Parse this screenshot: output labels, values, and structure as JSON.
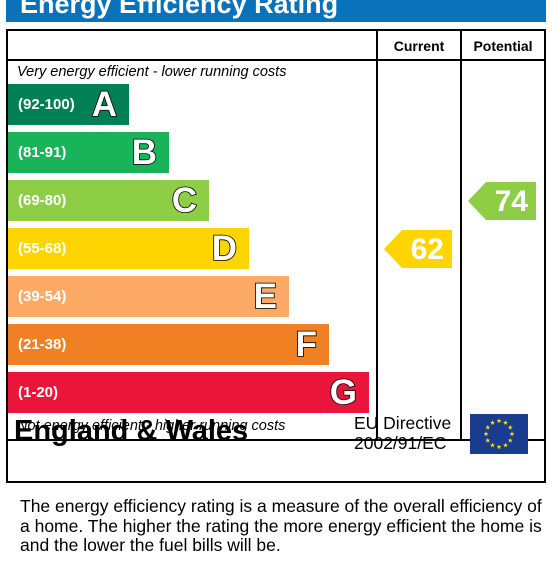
{
  "banner": {
    "title": "Energy Efficiency Rating"
  },
  "colors": {
    "banner": "#0a72bb",
    "band_a": "#008054",
    "band_b": "#19b459",
    "band_c": "#8dce46",
    "band_d": "#ffd500",
    "band_e": "#fcaa65",
    "band_f": "#ef8023",
    "band_g": "#e9153b",
    "eu_blue": "#1a3c8f",
    "eu_star": "#ffdd00"
  },
  "columns": {
    "current": "Current",
    "potential": "Potential"
  },
  "notes": {
    "top": "Very energy efficient - lower running costs",
    "bottom": "Not energy efficient - higher running costs"
  },
  "chart_data": {
    "type": "bar",
    "title": "Energy Efficiency Rating",
    "categories": [
      "A",
      "B",
      "C",
      "D",
      "E",
      "F",
      "G"
    ],
    "bands": [
      {
        "letter": "A",
        "range": "(92-100)",
        "color": "#008054"
      },
      {
        "letter": "B",
        "range": "(81-91)",
        "color": "#19b459"
      },
      {
        "letter": "C",
        "range": "(69-80)",
        "color": "#8dce46"
      },
      {
        "letter": "D",
        "range": "(55-68)",
        "color": "#ffd500"
      },
      {
        "letter": "E",
        "range": "(39-54)",
        "color": "#fcaa65"
      },
      {
        "letter": "F",
        "range": "(21-38)",
        "color": "#ef8023"
      },
      {
        "letter": "G",
        "range": "(1-20)",
        "color": "#e9153b"
      }
    ],
    "ratings": [
      {
        "column": "Current",
        "value": 62,
        "band": "D",
        "color": "#ffd500"
      },
      {
        "column": "Potential",
        "value": 74,
        "band": "C",
        "color": "#8dce46"
      }
    ]
  },
  "footer": {
    "region": "England & Wales",
    "directive_line1": "EU Directive",
    "directive_line2": "2002/91/EC",
    "flag_icon": "eu-flag-icon"
  },
  "description": "The energy efficiency rating is a measure of the overall efficiency of a home.  The higher the rating the more energy efficient the home is and the lower the fuel bills will be."
}
